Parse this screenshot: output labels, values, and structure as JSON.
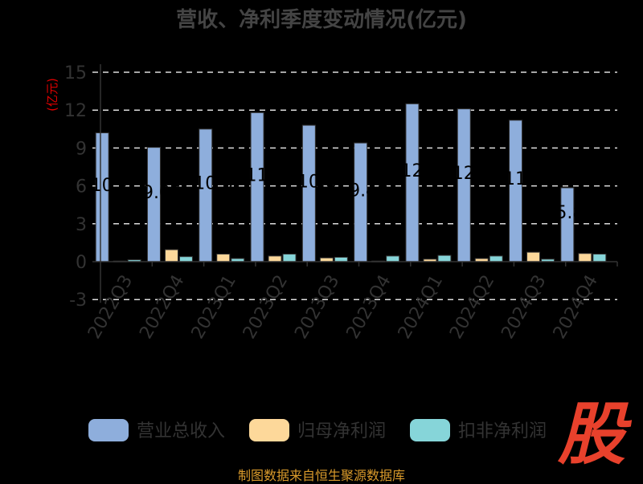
{
  "chart_data": {
    "type": "bar",
    "title": "营收、净利季度变动情况(亿元)",
    "ylabel": "(亿元)",
    "xlabel": "",
    "ylim": [
      -3,
      15
    ],
    "yticks": [
      -3,
      0,
      3,
      6,
      9,
      12,
      15
    ],
    "grid": true,
    "legend_position": "bottom",
    "categories": [
      "2022Q3",
      "2022Q4",
      "2023Q1",
      "2023Q2",
      "2023Q3",
      "2023Q4",
      "2024Q1",
      "2024Q2",
      "2024Q3",
      "2024Q4"
    ],
    "series": [
      {
        "name": "营业总收入",
        "color": "#8eaedc",
        "values": [
          10.2,
          9.05,
          10.5,
          11.8,
          10.8,
          9.4,
          12.5,
          12.1,
          11.2,
          5.85
        ],
        "labels": [
          "10.2",
          "9.05",
          "10.5",
          "11.8",
          "10.8",
          "9.40",
          "12.5",
          "12.1",
          "11.2",
          "5.85"
        ]
      },
      {
        "name": "归母净利润",
        "color": "#fdd89a",
        "values": [
          0.05,
          0.95,
          0.6,
          0.45,
          0.3,
          0.05,
          0.2,
          0.25,
          0.75,
          0.65
        ]
      },
      {
        "name": "扣非净利润",
        "color": "#86d5d9",
        "values": [
          0.15,
          0.4,
          0.25,
          0.6,
          0.35,
          0.45,
          0.5,
          0.45,
          0.2,
          0.6
        ]
      }
    ]
  },
  "footer": "制图数据来自恒生聚源数据库",
  "logo_text": "股"
}
